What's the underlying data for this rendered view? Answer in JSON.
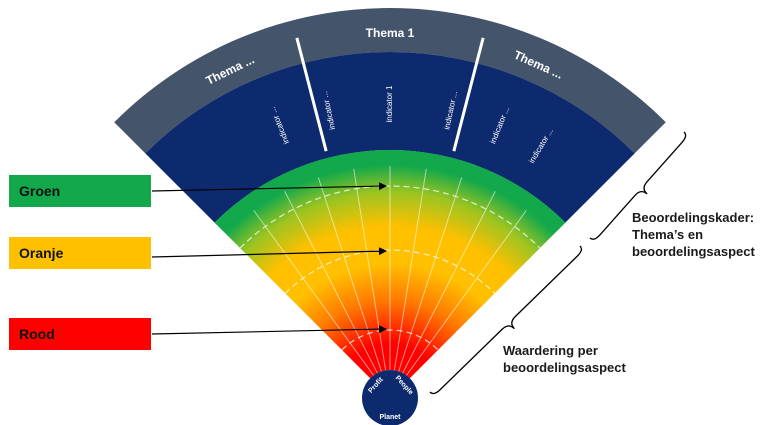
{
  "diagram": {
    "themes": [
      "Thema ...",
      "Thema 1",
      "Thema ..."
    ],
    "indicators": [
      "indicator ...",
      "indicator ...",
      "indicator 1",
      "indicator ...",
      "indicator ...",
      "indicator ..."
    ],
    "legend": [
      {
        "label": "Groen",
        "color": "#13a84b"
      },
      {
        "label": "Oranje",
        "color": "#ffc000"
      },
      {
        "label": "Rood",
        "color": "#ff0000"
      }
    ],
    "hub_labels": [
      "Profit",
      "People",
      "Planet"
    ],
    "bracket_labels": {
      "kader": [
        "Beoordelingskader:",
        "Thema’s en",
        "beoordelingsaspect"
      ],
      "waardering": [
        "Waardering per",
        "beoordelingsaspect"
      ]
    },
    "colors": {
      "theme_band": "#44546a",
      "indicator_band": "#0e2a6e",
      "green": "#13a84b",
      "yellow": "#ffc000",
      "red": "#ff0000",
      "hub": "#0e2a6e"
    }
  }
}
